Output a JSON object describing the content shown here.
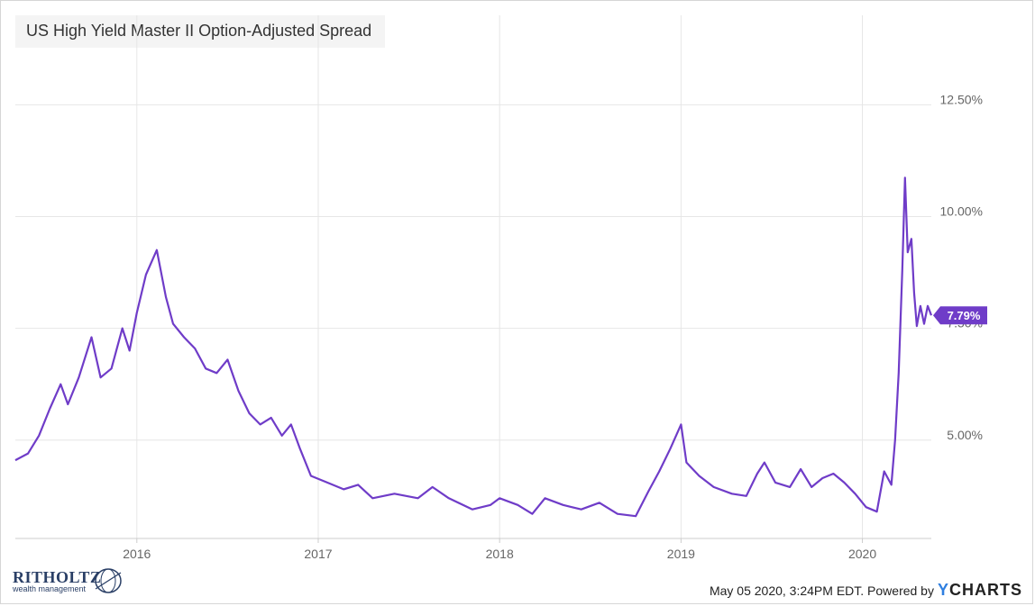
{
  "chart_data": {
    "type": "line",
    "title": "US High Yield Master II Option-Adjusted Spread",
    "x_ticks": [
      "2016",
      "2017",
      "2018",
      "2019",
      "2020"
    ],
    "y_ticks": [
      "5.00%",
      "7.50%",
      "10.00%",
      "12.50%"
    ],
    "ylim": [
      2.8,
      14.5
    ],
    "xlim": [
      2015.33,
      2020.38
    ],
    "grid": true,
    "last_value_label": "7.79%",
    "series": [
      {
        "color": "#6f3cc8",
        "points": [
          [
            2015.33,
            4.55
          ],
          [
            2015.4,
            4.7
          ],
          [
            2015.46,
            5.1
          ],
          [
            2015.52,
            5.7
          ],
          [
            2015.58,
            6.25
          ],
          [
            2015.62,
            5.8
          ],
          [
            2015.68,
            6.4
          ],
          [
            2015.75,
            7.3
          ],
          [
            2015.8,
            6.4
          ],
          [
            2015.86,
            6.6
          ],
          [
            2015.92,
            7.5
          ],
          [
            2015.96,
            7.0
          ],
          [
            2016.0,
            7.85
          ],
          [
            2016.05,
            8.7
          ],
          [
            2016.11,
            9.25
          ],
          [
            2016.16,
            8.2
          ],
          [
            2016.2,
            7.6
          ],
          [
            2016.26,
            7.3
          ],
          [
            2016.32,
            7.05
          ],
          [
            2016.38,
            6.6
          ],
          [
            2016.44,
            6.5
          ],
          [
            2016.5,
            6.8
          ],
          [
            2016.56,
            6.1
          ],
          [
            2016.62,
            5.6
          ],
          [
            2016.68,
            5.35
          ],
          [
            2016.74,
            5.5
          ],
          [
            2016.8,
            5.1
          ],
          [
            2016.85,
            5.35
          ],
          [
            2016.9,
            4.8
          ],
          [
            2016.96,
            4.2
          ],
          [
            2017.05,
            4.05
          ],
          [
            2017.14,
            3.9
          ],
          [
            2017.22,
            4.0
          ],
          [
            2017.3,
            3.7
          ],
          [
            2017.42,
            3.8
          ],
          [
            2017.55,
            3.7
          ],
          [
            2017.63,
            3.95
          ],
          [
            2017.72,
            3.7
          ],
          [
            2017.85,
            3.45
          ],
          [
            2017.95,
            3.55
          ],
          [
            2018.0,
            3.7
          ],
          [
            2018.1,
            3.55
          ],
          [
            2018.18,
            3.35
          ],
          [
            2018.25,
            3.7
          ],
          [
            2018.35,
            3.55
          ],
          [
            2018.45,
            3.45
          ],
          [
            2018.55,
            3.6
          ],
          [
            2018.65,
            3.35
          ],
          [
            2018.75,
            3.3
          ],
          [
            2018.82,
            3.85
          ],
          [
            2018.88,
            4.3
          ],
          [
            2018.94,
            4.8
          ],
          [
            2019.0,
            5.35
          ],
          [
            2019.03,
            4.5
          ],
          [
            2019.1,
            4.2
          ],
          [
            2019.18,
            3.95
          ],
          [
            2019.28,
            3.8
          ],
          [
            2019.36,
            3.75
          ],
          [
            2019.42,
            4.25
          ],
          [
            2019.46,
            4.5
          ],
          [
            2019.52,
            4.05
          ],
          [
            2019.6,
            3.95
          ],
          [
            2019.66,
            4.35
          ],
          [
            2019.72,
            3.95
          ],
          [
            2019.78,
            4.15
          ],
          [
            2019.84,
            4.25
          ],
          [
            2019.9,
            4.05
          ],
          [
            2019.96,
            3.8
          ],
          [
            2020.02,
            3.5
          ],
          [
            2020.08,
            3.4
          ],
          [
            2020.12,
            4.3
          ],
          [
            2020.16,
            4.0
          ],
          [
            2020.18,
            5.0
          ],
          [
            2020.2,
            6.5
          ],
          [
            2020.22,
            8.8
          ],
          [
            2020.235,
            10.87
          ],
          [
            2020.25,
            9.2
          ],
          [
            2020.27,
            9.5
          ],
          [
            2020.285,
            8.3
          ],
          [
            2020.3,
            7.55
          ],
          [
            2020.32,
            8.0
          ],
          [
            2020.34,
            7.6
          ],
          [
            2020.36,
            8.0
          ],
          [
            2020.38,
            7.79
          ]
        ]
      }
    ]
  },
  "footer": {
    "timestamp": "May 05 2020, 3:24PM EDT. Powered by",
    "brand_y": "Y",
    "brand_rest": "CHARTS"
  },
  "logo": {
    "word": "RITHOLTZ",
    "sub": "wealth management"
  },
  "colors": {
    "line": "#6f3cc8",
    "grid": "#e6e6e6",
    "axis_text": "#666666"
  }
}
